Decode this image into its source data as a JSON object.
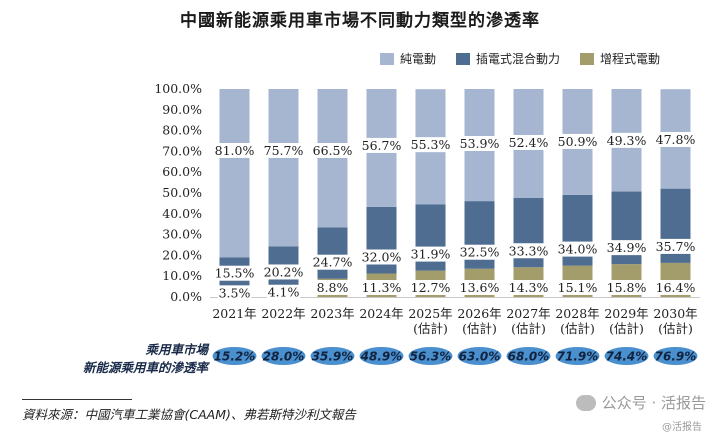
{
  "chart_data": {
    "type": "bar",
    "stacked": true,
    "title": "中國新能源乘用車市場不同動力類型的滲透率",
    "categories": [
      "2021年",
      "2022年",
      "2023年",
      "2024年",
      "2025年",
      "2026年",
      "2027年",
      "2028年",
      "2029年",
      "2030年"
    ],
    "category_sublabels": [
      "",
      "",
      "",
      "",
      "(估計)",
      "(估計)",
      "(估計)",
      "(估計)",
      "(估計)",
      "(估計)"
    ],
    "yticks": [
      "100.0%",
      "90.0%",
      "80.0%",
      "70.0%",
      "60.0%",
      "50.0%",
      "40.0%",
      "30.0%",
      "20.0%",
      "10.0%",
      "0.0%"
    ],
    "ylim": [
      0,
      100
    ],
    "series": [
      {
        "name": "增程式電動",
        "color": "#a39d6b",
        "values": [
          3.5,
          4.1,
          8.8,
          11.3,
          12.7,
          13.6,
          14.3,
          15.1,
          15.8,
          16.4
        ],
        "labels": [
          "3.5%",
          "4.1%",
          "8.8%",
          "11.3%",
          "12.7%",
          "13.6%",
          "14.3%",
          "15.1%",
          "15.8%",
          "16.4%"
        ]
      },
      {
        "name": "插電式混合動力",
        "color": "#4e6d91",
        "values": [
          15.5,
          20.2,
          24.7,
          32.0,
          31.9,
          32.5,
          33.3,
          34.0,
          34.9,
          35.7
        ],
        "labels": [
          "15.5%",
          "20.2%",
          "24.7%",
          "32.0%",
          "31.9%",
          "32.5%",
          "33.3%",
          "34.0%",
          "34.9%",
          "35.7%"
        ]
      },
      {
        "name": "純電動",
        "color": "#a6b6d0",
        "values": [
          81.0,
          75.7,
          66.5,
          56.7,
          55.3,
          53.9,
          52.4,
          50.9,
          49.3,
          47.8
        ],
        "labels": [
          "81.0%",
          "75.7%",
          "66.5%",
          "56.7%",
          "55.3%",
          "53.9%",
          "52.4%",
          "50.9%",
          "49.3%",
          "47.8%"
        ]
      }
    ],
    "legend_order": [
      "純電動",
      "插電式混合動力",
      "增程式電動"
    ],
    "penetration_label_line1": "乘用車市場",
    "penetration_label_line2": "新能源乘用車的滲透率",
    "penetration_values": [
      15.2,
      28.0,
      35.9,
      48.9,
      56.3,
      63.0,
      68.0,
      71.9,
      74.4,
      76.9
    ],
    "penetration_labels": [
      "15.2%",
      "28.0%",
      "35.9%",
      "48.9%",
      "56.3%",
      "63.0%",
      "68.0%",
      "71.9%",
      "74.4%",
      "76.9%"
    ],
    "penetration_color": "#4a8fce"
  },
  "legend": {
    "item1": "純電動",
    "item1_color": "#a6b6d0",
    "item2": "插電式混合動力",
    "item2_color": "#4e6d91",
    "item3": "增程式電動",
    "item3_color": "#a39d6b"
  },
  "source": "資料來源：中國汽車工業協會(CAAM)、弗若斯特沙利文報告",
  "watermark": {
    "main": "公众号 · 活报告",
    "sub": "@活报告"
  }
}
